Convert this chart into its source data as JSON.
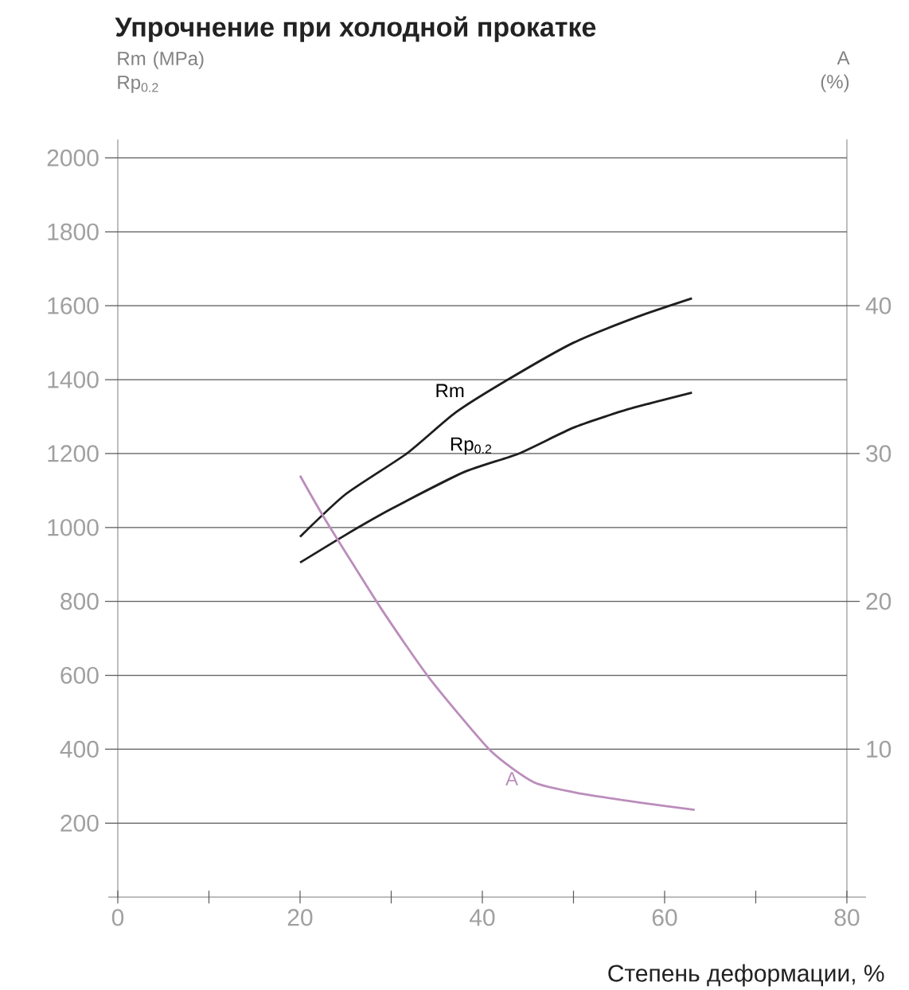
{
  "chart_data": {
    "type": "line",
    "title": "Упрочнение при холодной прокатке",
    "xlabel": "Степень деформации, %",
    "ylabel": "Rm (MPa) Rp$_{0.2}$",
    "y2label": "A (%)",
    "series": [
      {
        "name": "Rm",
        "color": "#1e1e1e",
        "x": [
          20,
          25,
          31.7,
          37,
          42.8,
          50,
          57,
          63
        ],
        "values": [
          975,
          1090,
          1200,
          1310,
          1400,
          1500,
          1570,
          1620
        ]
      },
      {
        "name": "Rp$_{0.2}$",
        "color": "#1e1e1e",
        "x": [
          20,
          25,
          30,
          38,
          44,
          50,
          56,
          63
        ],
        "values": [
          905,
          980,
          1050,
          1150,
          1200,
          1270,
          1320,
          1365
        ]
      },
      {
        "name": "A",
        "color": "#bb8dbb",
        "axis": "y2",
        "x": [
          20,
          22.7,
          28.8,
          34.2,
          40.9,
          45.7,
          50.8,
          57.2,
          63.3
        ],
        "values": [
          28.5,
          25.6,
          19.6,
          14.8,
          9.9,
          7.75,
          7.0,
          6.4,
          5.9
        ]
      }
    ],
    "xlim": [
      0,
      80
    ],
    "xticks": [
      0,
      {
        "value": 10,
        "label": null
      },
      20,
      {
        "value": 30,
        "label": null
      },
      40,
      {
        "value": 50,
        "label": null
      },
      60,
      {
        "value": 70,
        "label": null
      },
      80
    ],
    "ylim": [
      0,
      2050
    ],
    "yticks": [
      200,
      400,
      600,
      800,
      1000,
      1200,
      1400,
      1600,
      1800,
      2000
    ],
    "y2lim": [
      0,
      51.25
    ],
    "y2ticks": [
      10,
      20,
      30,
      40
    ],
    "grid": "y"
  }
}
